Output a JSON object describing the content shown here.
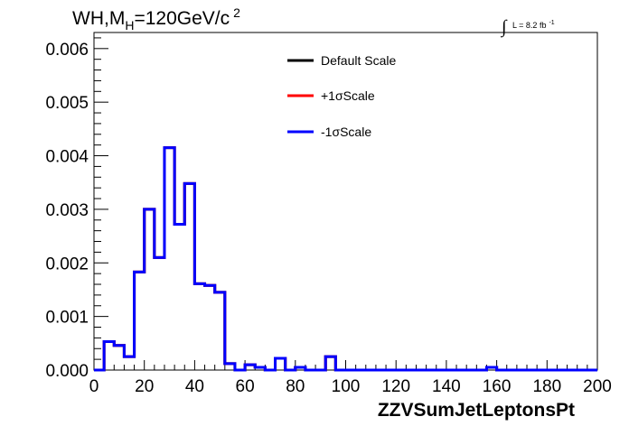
{
  "chart_data": {
    "type": "line",
    "title_parts": {
      "main": "WH,M",
      "sub": "H",
      "rest": "=120GeV/c",
      "sup": "2"
    },
    "lumi": {
      "integral": "∫",
      "text": "L = 8.2 fb",
      "sup": "-1"
    },
    "xlabel": "ZZVSumJetLeptonsPt",
    "ylabel": "",
    "xlim": [
      0,
      200
    ],
    "ylim": [
      0,
      0.0063
    ],
    "x_ticks": [
      "0",
      "20",
      "40",
      "60",
      "80",
      "100",
      "120",
      "140",
      "160",
      "180",
      "200"
    ],
    "y_ticks": [
      "0.000",
      "0.001",
      "0.002",
      "0.003",
      "0.004",
      "0.005",
      "0.006"
    ],
    "bin_edges": [
      0,
      4,
      8,
      12,
      16,
      20,
      24,
      28,
      32,
      36,
      40,
      44,
      48,
      52,
      56,
      60,
      64,
      68,
      72,
      76,
      80,
      84,
      88,
      92,
      96,
      100,
      104,
      108,
      112,
      116,
      120,
      124,
      128,
      132,
      136,
      140,
      144,
      148,
      152,
      156,
      160,
      164,
      168,
      172,
      176,
      180,
      184,
      188,
      192,
      196,
      200
    ],
    "series": [
      {
        "name": "Default Scale",
        "color": "#000000",
        "values": [
          0,
          0.00053,
          0.00046,
          0.00025,
          0.00183,
          0.003,
          0.0021,
          0.00415,
          0.00272,
          0.00348,
          0.00161,
          0.00158,
          0.00145,
          0.00012,
          0,
          0.0001,
          5e-05,
          0,
          0.00022,
          0,
          5e-05,
          0,
          0,
          0.00025,
          0,
          0,
          0,
          0,
          0,
          0,
          0,
          0,
          0,
          0,
          0,
          0,
          0,
          0,
          0,
          5e-05,
          0,
          0,
          0,
          0,
          0,
          0,
          0,
          0,
          0,
          0
        ]
      },
      {
        "name": "+1σScale",
        "color": "#ff0000",
        "values": [
          0,
          0.00053,
          0.00046,
          0.00025,
          0.00183,
          0.003,
          0.0021,
          0.00415,
          0.00272,
          0.00348,
          0.00161,
          0.00158,
          0.00145,
          0.00012,
          0,
          0.0001,
          5e-05,
          0,
          0.00022,
          0,
          5e-05,
          0,
          0,
          0.00025,
          0,
          0,
          0,
          0,
          0,
          0,
          0,
          0,
          0,
          0,
          0,
          0,
          0,
          0,
          0,
          5e-05,
          0,
          0,
          0,
          0,
          0,
          0,
          0,
          0,
          0,
          0
        ]
      },
      {
        "name": "-1σScale",
        "color": "#0000ff",
        "values": [
          0,
          0.00053,
          0.00046,
          0.00025,
          0.00183,
          0.003,
          0.0021,
          0.00415,
          0.00272,
          0.00348,
          0.00161,
          0.00158,
          0.00145,
          0.00012,
          0,
          0.0001,
          5e-05,
          0,
          0.00022,
          0,
          5e-05,
          0,
          0,
          0.00025,
          0,
          0,
          0,
          0,
          0,
          0,
          0,
          0,
          0,
          0,
          0,
          0,
          0,
          0,
          0,
          5e-05,
          0,
          0,
          0,
          0,
          0,
          0,
          0,
          0,
          0,
          0
        ]
      }
    ],
    "legend_placement": "top-center",
    "grid": false
  }
}
